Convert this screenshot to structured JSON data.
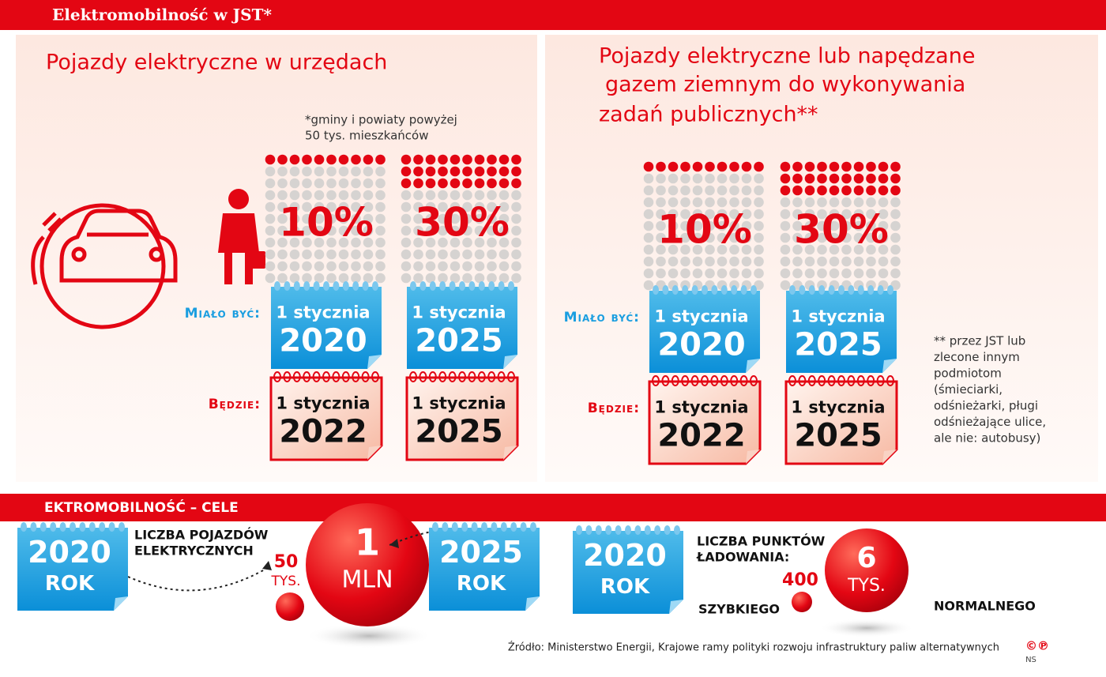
{
  "header": {
    "title": "Elektromobilność w JST*"
  },
  "row_labels": {
    "planned": "Miało być:",
    "actual": "Będzie:"
  },
  "left": {
    "title": "Pojazdy elektryczne w urzędach",
    "note": [
      "*gminy i powiaty powyżej",
      "50 tys. mieszkańców"
    ],
    "columns": [
      {
        "percent": "10%",
        "planned": {
          "day": "1 stycznia",
          "year": "2020"
        },
        "actual": {
          "day": "1 stycznia",
          "year": "2022"
        }
      },
      {
        "percent": "30%",
        "planned": {
          "day": "1 stycznia",
          "year": "2025"
        },
        "actual": {
          "day": "1 stycznia",
          "year": "2025"
        }
      }
    ]
  },
  "right": {
    "title": [
      "Pojazdy elektryczne lub napędzane",
      "gazem ziemnym do wykonywania",
      "zadań publicznych**"
    ],
    "note": [
      "** przez JST lub",
      "zlecone innym",
      "podmiotom",
      "(śmieciarki,",
      "odśnieżarki, pługi",
      "odśnieżające ulice,",
      "ale nie: autobusy)"
    ],
    "columns": [
      {
        "percent": "10%",
        "planned": {
          "day": "1 stycznia",
          "year": "2020"
        },
        "actual": {
          "day": "1 stycznia",
          "year": "2022"
        }
      },
      {
        "percent": "30%",
        "planned": {
          "day": "1 stycznia",
          "year": "2025"
        },
        "actual": {
          "day": "1 stycznia",
          "year": "2025"
        }
      }
    ]
  },
  "goals": {
    "title": "EKTROMOBILNOŚĆ – CELE",
    "vehicles": {
      "label": [
        "LICZBA POJAZDÓW",
        "ELEKTRYCZNYCH"
      ],
      "from": {
        "year": "2020",
        "unit": "ROK"
      },
      "from_value": {
        "number": "50",
        "unit": "TYS."
      },
      "to": {
        "year": "2025",
        "unit": "ROK"
      },
      "to_value": {
        "number": "1",
        "unit": "MLN"
      }
    },
    "charging": {
      "from": {
        "year": "2020",
        "unit": "ROK"
      },
      "label": [
        "LICZBA PUNKTÓW",
        "ŁADOWANIA:"
      ],
      "fast": {
        "number": "400",
        "label": "SZYBKIEGO"
      },
      "normal": {
        "number": "6",
        "unit": "TYS.",
        "label": "NORMALNEGO"
      }
    }
  },
  "footer": {
    "source": "Źródło: Ministerstwo Energii, Krajowe ramy polityki rozwoju infrastruktury paliw alternatywnych",
    "copyright": "©℗",
    "author": "NS"
  }
}
